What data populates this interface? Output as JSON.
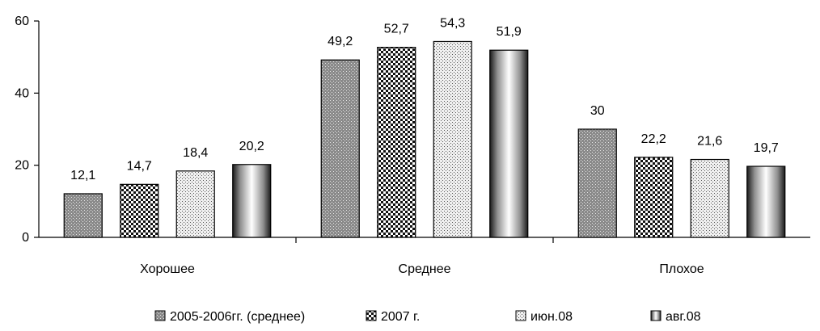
{
  "chart_data": {
    "type": "bar",
    "categories": [
      "Хорошее",
      "Среднее",
      "Плохое"
    ],
    "series": [
      {
        "name": "2005-2006гг. (среднее)",
        "values": [
          12.1,
          49.2,
          30
        ],
        "labels": [
          "12,1",
          "49,2",
          "30"
        ],
        "pattern": "fine"
      },
      {
        "name": "2007 г.",
        "values": [
          14.7,
          52.7,
          22.2
        ],
        "labels": [
          "14,7",
          "52,7",
          "22,2"
        ],
        "pattern": "checker"
      },
      {
        "name": "июн.08",
        "values": [
          18.4,
          54.3,
          21.6
        ],
        "labels": [
          "18,4",
          "54,3",
          "21,6"
        ],
        "pattern": "dots"
      },
      {
        "name": "авг.08",
        "values": [
          20.2,
          51.9,
          19.7
        ],
        "labels": [
          "20,2",
          "51,9",
          "19,7"
        ],
        "pattern": "cylinder"
      }
    ],
    "ylim": [
      0,
      60
    ],
    "yticks": [
      0,
      20,
      40,
      60
    ],
    "grid": false,
    "legend_position": "bottom"
  }
}
